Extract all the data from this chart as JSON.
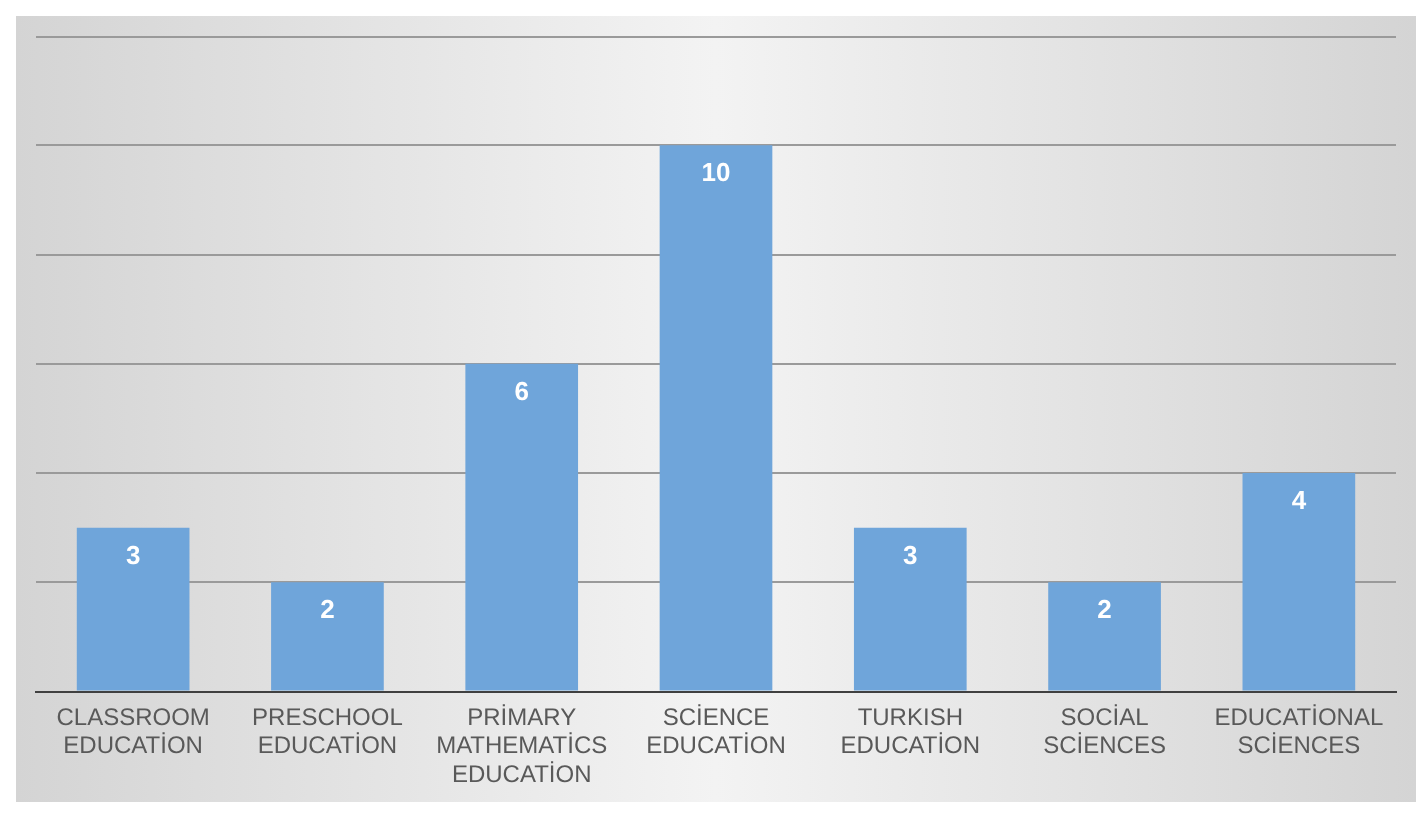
{
  "chart_data": {
    "type": "bar",
    "categories": [
      "CLASSROOM EDUCATİON",
      "PRESCHOOL EDUCATİON",
      "PRİMARY MATHEMATİCS EDUCATİON",
      "SCİENCE EDUCATİON",
      "TURKISH EDUCATİON",
      "SOCİAL SCİENCES",
      "EDUCATİONAL SCİENCES"
    ],
    "values": [
      3,
      2,
      6,
      10,
      3,
      2,
      4
    ],
    "color": "#6fa5da",
    "ylim": [
      0,
      12
    ],
    "yticks": [
      {
        "value": 0,
        "label": null
      },
      {
        "value": 2,
        "label": null
      },
      {
        "value": 4,
        "label": null
      },
      {
        "value": 6,
        "label": null
      },
      {
        "value": 8,
        "label": null
      },
      {
        "value": 10,
        "label": null
      }
    ],
    "tick_labels": "x",
    "grid": "y",
    "data_labels": true
  }
}
